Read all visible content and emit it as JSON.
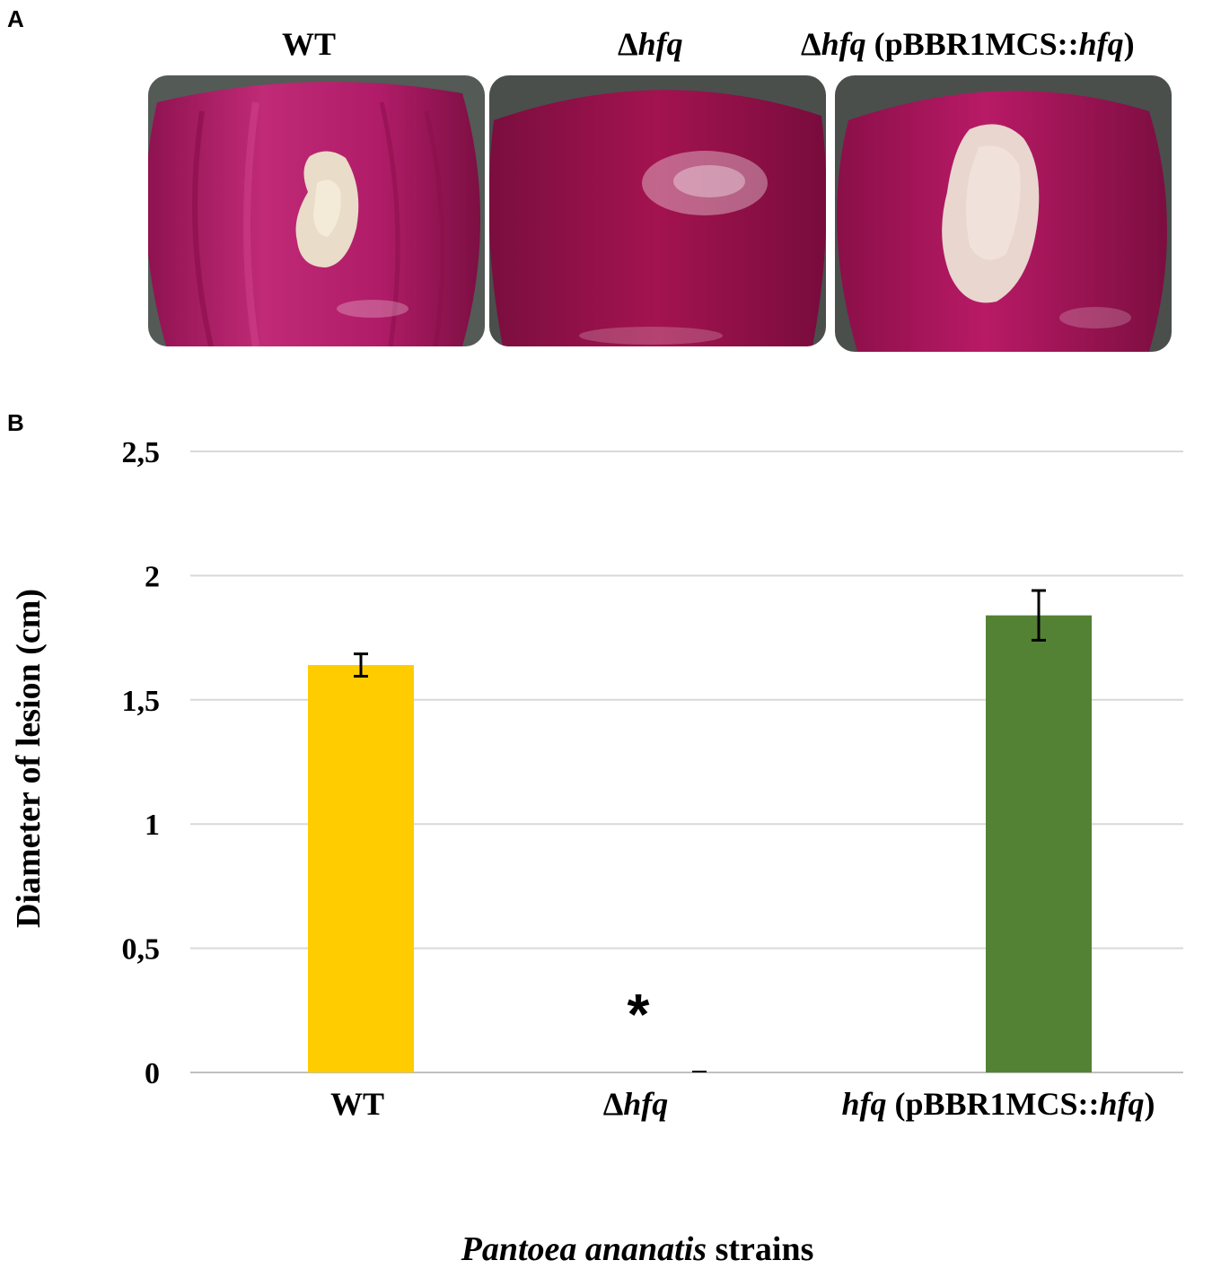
{
  "panel_a": {
    "label": "A",
    "photos": [
      {
        "title_prefix": "",
        "title_italic": "",
        "title_rest": "WT",
        "title_rest2": "",
        "title_italic2": "",
        "title_close": "",
        "has_lesion": true,
        "lesion_size": "medium"
      },
      {
        "title_prefix": "Δ",
        "title_italic": "hfq",
        "title_rest": "",
        "title_rest2": "",
        "title_italic2": "",
        "title_close": "",
        "has_lesion": false,
        "lesion_size": "none"
      },
      {
        "title_prefix": "Δ",
        "title_italic": "hfq",
        "title_rest": " (pBBR1MCS::",
        "title_rest2": "",
        "title_italic2": "hfq",
        "title_close": ")",
        "has_lesion": true,
        "lesion_size": "large"
      }
    ],
    "colors": {
      "onion": "#b5165f",
      "onion_dark": "#7e0c3c",
      "lesion": "#e9dcc8",
      "background": "#4a4f4c"
    }
  },
  "panel_b": {
    "label": "B",
    "x_title_italic": "Pantoea ananatis",
    "x_title_rest": " strains",
    "y_title": "Diameter of lesion (cm)"
  },
  "chart_data": {
    "type": "bar",
    "categories": [
      {
        "prefix": "",
        "italic": "",
        "text": "WT",
        "italic2": "",
        "close": ""
      },
      {
        "prefix": "Δ",
        "italic": "hfq",
        "text": "",
        "italic2": "",
        "close": ""
      },
      {
        "prefix": "",
        "italic": "hfq",
        "text": " (pBBR1MCS::",
        "italic2": "hfq",
        "close": ")"
      }
    ],
    "values": [
      1.64,
      0.0,
      1.84
    ],
    "errors": [
      0.045,
      0.0,
      0.1
    ],
    "colors": [
      "#ffcc00",
      "#ffcc00",
      "#548235"
    ],
    "annotations": [
      {
        "category_index": 1,
        "text": "*"
      }
    ],
    "ylim": [
      0,
      2.5
    ],
    "yticks": [
      0,
      0.5,
      1,
      1.5,
      2,
      2.5
    ],
    "ytick_labels": [
      "0",
      "0,5",
      "1",
      "1,5",
      "2",
      "2,5"
    ],
    "ylabel": "Diameter of lesion (cm)",
    "xlabel": "Pantoea ananatis strains",
    "grid": true
  }
}
